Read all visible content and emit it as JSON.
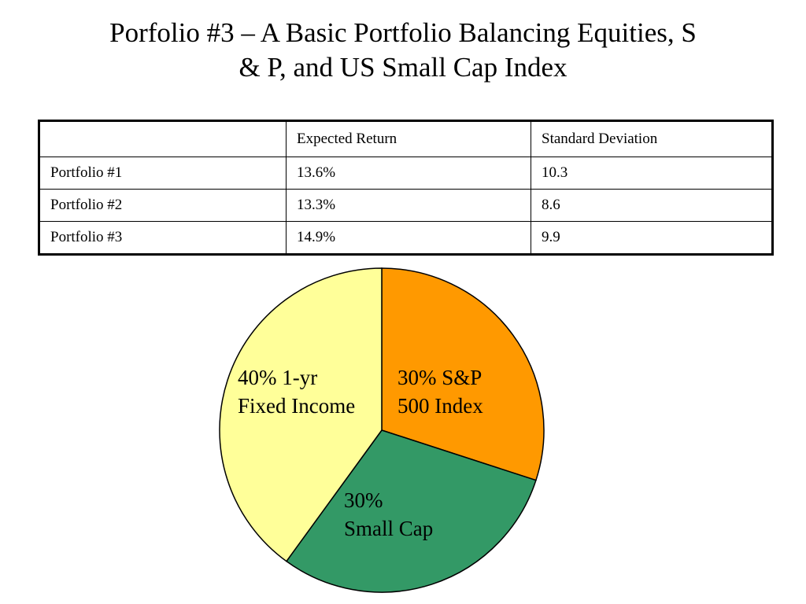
{
  "slide": {
    "title_line1": "Porfolio #3 – A Basic Portfolio Balancing Equities, S",
    "title_line2": "& P, and US Small Cap Index"
  },
  "table": {
    "headers": [
      "",
      "Expected Return",
      "Standard Deviation"
    ],
    "rows": [
      [
        "Portfolio #1",
        "13.6%",
        "10.3"
      ],
      [
        "Portfolio #2",
        "13.3%",
        "8.6"
      ],
      [
        "Portfolio #3",
        "14.9%",
        "9.9"
      ]
    ]
  },
  "chart_data": {
    "type": "pie",
    "slices": [
      {
        "value": 30,
        "label_line1": "30% S&P",
        "label_line2": "500 Index",
        "color": "#FF9900"
      },
      {
        "value": 30,
        "label_line1": "30%",
        "label_line2": "Small Cap",
        "color": "#339966"
      },
      {
        "value": 40,
        "label_line1": "40% 1-yr",
        "label_line2": "Fixed Income",
        "color": "#FFFF99"
      }
    ],
    "start": "12 o'clock",
    "direction": "clockwise",
    "outline_color": "#000000"
  }
}
